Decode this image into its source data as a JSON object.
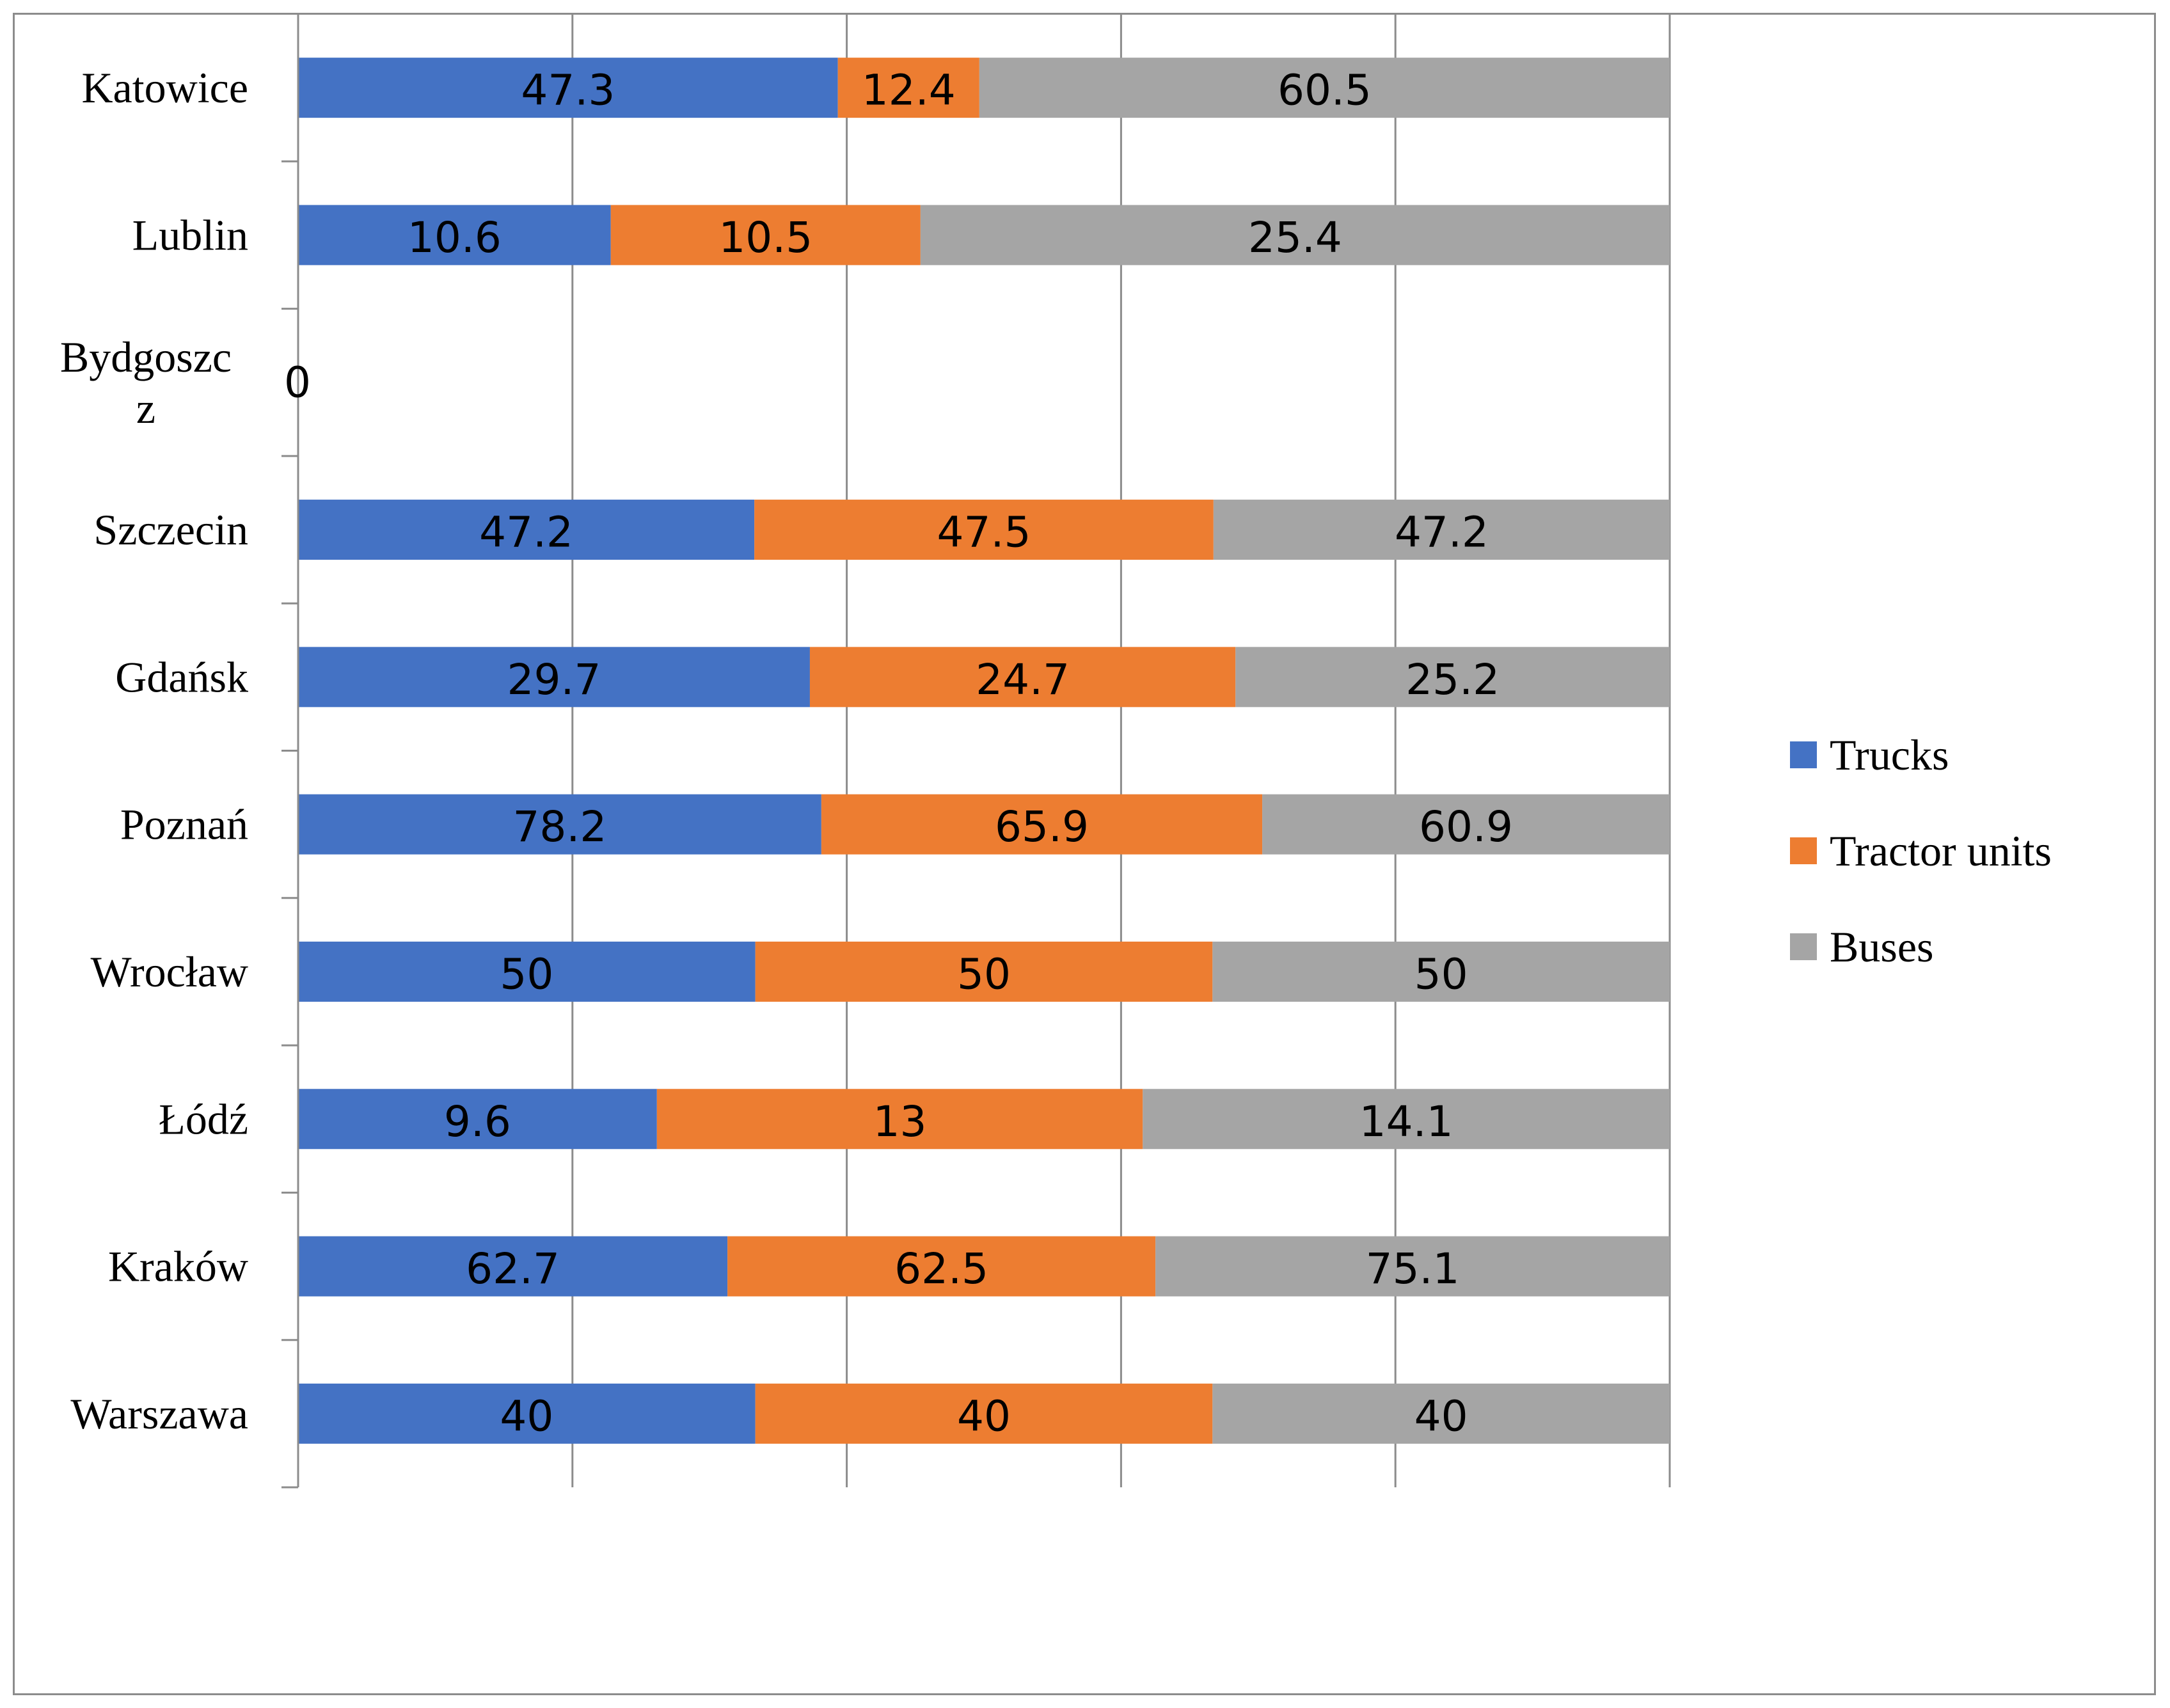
{
  "chart_data": {
    "type": "bar",
    "orientation": "horizontal",
    "stacked": "percent",
    "title": "",
    "xlabel": "",
    "ylabel": "",
    "categories": [
      "Katowice",
      "Lublin",
      "Bydgoszcz",
      "Szczecin",
      "Gdańsk",
      "Poznań",
      "Wrocław",
      "Łódź",
      "Kraków",
      "Warszawa"
    ],
    "category_display": [
      [
        "Katowice"
      ],
      [
        "Lublin"
      ],
      [
        "Bydgoszc",
        "z"
      ],
      [
        "Szczecin"
      ],
      [
        "Gdańsk"
      ],
      [
        "Poznań"
      ],
      [
        "Wrocław"
      ],
      [
        "Łódź"
      ],
      [
        "Kraków"
      ],
      [
        "Warszawa"
      ]
    ],
    "series": [
      {
        "name": "Trucks",
        "color": "#4472C4",
        "values": [
          47.3,
          10.6,
          0,
          47.2,
          29.7,
          78.2,
          50,
          9.6,
          62.7,
          40
        ]
      },
      {
        "name": "Tractor units",
        "color": "#ED7D31",
        "values": [
          12.4,
          10.5,
          0,
          47.5,
          24.7,
          65.9,
          50,
          13,
          62.5,
          40
        ]
      },
      {
        "name": "Buses",
        "color": "#A5A5A5",
        "values": [
          60.5,
          25.4,
          0,
          47.2,
          25.2,
          60.9,
          50,
          14.1,
          75.1,
          40
        ]
      }
    ],
    "zero_label": "0",
    "xlim": [
      0,
      100
    ],
    "grid": true,
    "legend_position": "right"
  }
}
